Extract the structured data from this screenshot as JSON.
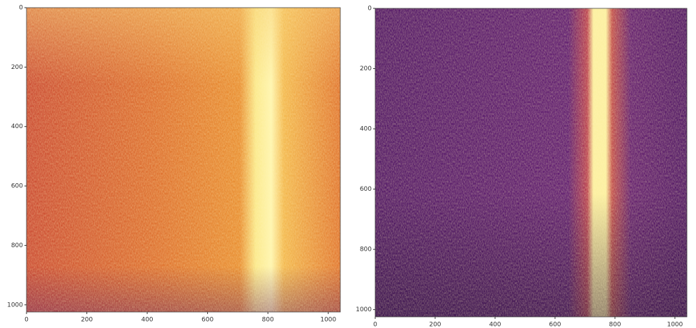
{
  "chart_data": [
    {
      "type": "image",
      "xlim": [
        0,
        1040
      ],
      "ylim": [
        0,
        1024
      ],
      "xticks": [
        0,
        200,
        400,
        600,
        800,
        1000
      ],
      "yticks": [
        0,
        200,
        400,
        600,
        800,
        1000
      ]
    },
    {
      "type": "image",
      "xlim": [
        0,
        1040
      ],
      "ylim": [
        0,
        1024
      ],
      "xticks": [
        0,
        200,
        400,
        600,
        800,
        1000
      ],
      "yticks": [
        0,
        200,
        400,
        600,
        800,
        1000
      ]
    }
  ]
}
